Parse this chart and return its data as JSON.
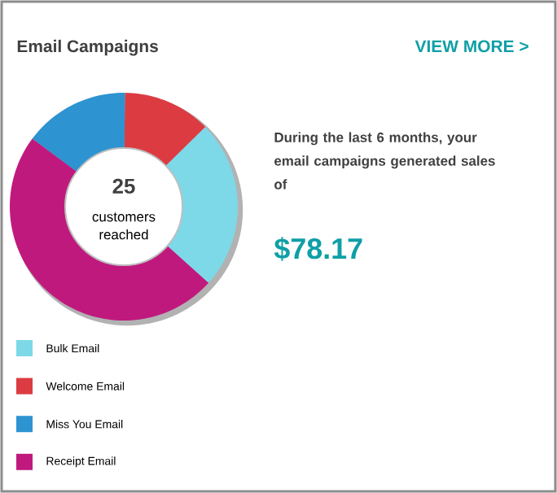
{
  "chart_data": {
    "type": "donut",
    "title": "Email Campaigns",
    "categories": [
      "Bulk Email",
      "Welcome Email",
      "Miss You Email",
      "Receipt Email"
    ],
    "values": [
      24,
      12.5,
      15,
      48.5
    ],
    "colors": [
      "#7dd8e8",
      "#dc3b42",
      "#2e93d1",
      "#c0197e"
    ],
    "legend": "bottom",
    "annotations": [
      "VIEW MORE >",
      "25",
      "customers reached",
      "During the last **6 months**, your email campaigns generated sales of",
      "$78.17"
    ]
  }
}
